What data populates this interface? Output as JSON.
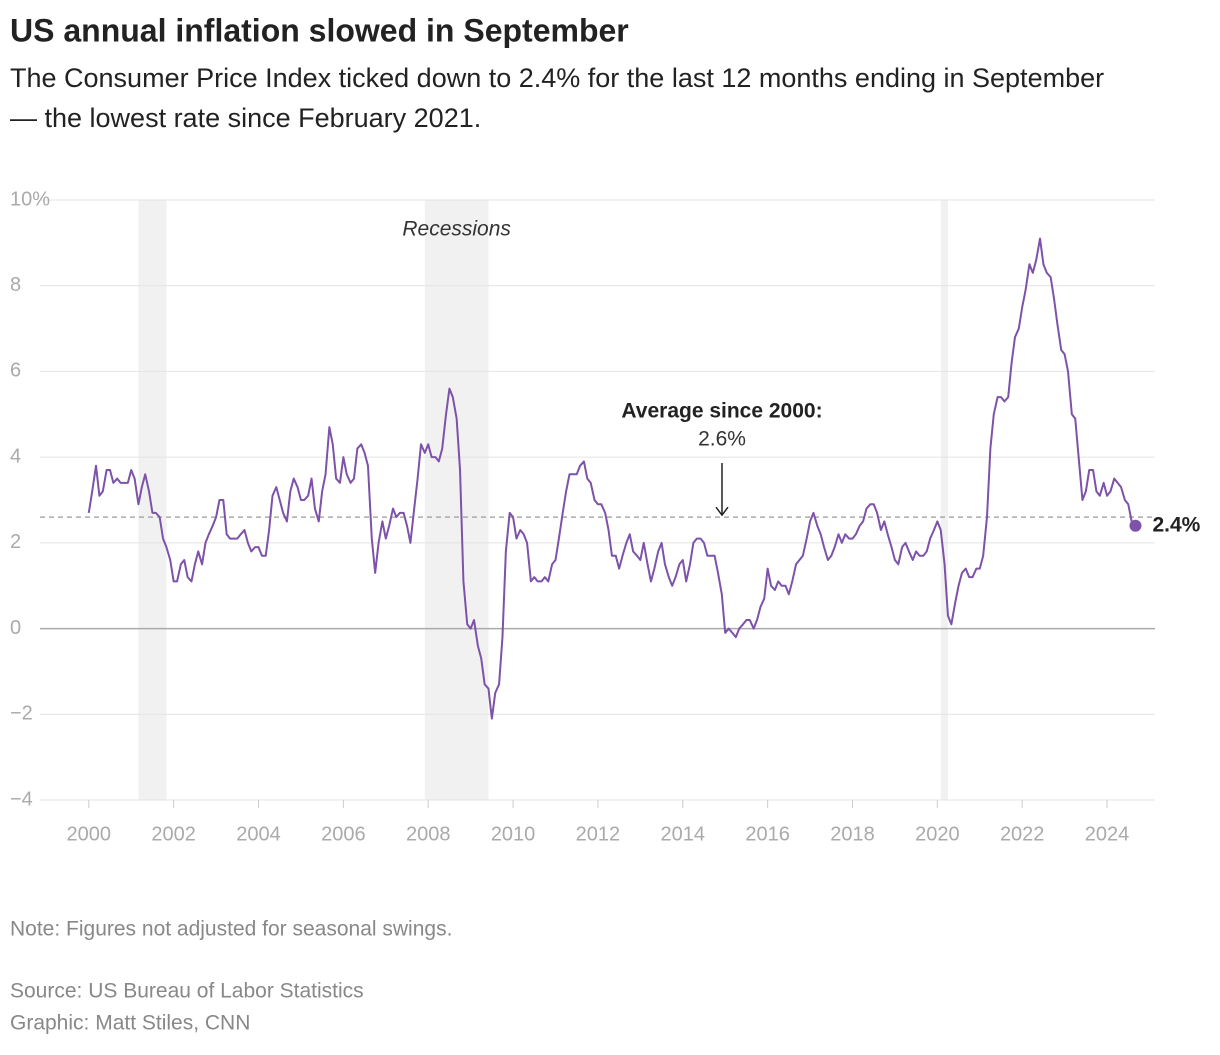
{
  "chart_data": {
    "type": "line",
    "title": "US annual inflation slowed in September",
    "subtitle": "The Consumer Price Index ticked down to 2.4% for the last 12 months ending in September — the lowest rate since February 2021.",
    "note": "Note: Figures not adjusted for seasonal swings.",
    "source": "Source: US Bureau of Labor Statistics",
    "credit": "Graphic: Matt Stiles, CNN",
    "color": "#7d52a9",
    "grid": true,
    "xlim": [
      1998.85,
      2025.13
    ],
    "ylim": [
      -4,
      10
    ],
    "xticks": [
      2000,
      2002,
      2004,
      2006,
      2008,
      2010,
      2012,
      2014,
      2016,
      2018,
      2020,
      2022,
      2024
    ],
    "yticks": [
      {
        "value": -4,
        "label": "−4"
      },
      {
        "value": -2,
        "label": "−2"
      },
      0,
      2,
      4,
      6,
      8,
      {
        "value": 10,
        "label": "10%"
      }
    ],
    "recessions_label": "Recessions",
    "recessions": [
      [
        2001.17,
        2001.83
      ],
      [
        2007.92,
        2009.42
      ],
      [
        2020.08,
        2020.25
      ]
    ],
    "average": {
      "value": 2.6,
      "label": "Average since 2000:",
      "value_label": "2.6%"
    },
    "last_label": "2.4%",
    "x": [
      2000,
      2000.08,
      2000.17,
      2000.25,
      2000.33,
      2000.42,
      2000.5,
      2000.58,
      2000.67,
      2000.75,
      2000.83,
      2000.92,
      2001,
      2001.08,
      2001.17,
      2001.25,
      2001.33,
      2001.42,
      2001.5,
      2001.58,
      2001.67,
      2001.75,
      2001.83,
      2001.92,
      2002,
      2002.08,
      2002.17,
      2002.25,
      2002.33,
      2002.42,
      2002.5,
      2002.58,
      2002.67,
      2002.75,
      2002.83,
      2002.92,
      2003,
      2003.08,
      2003.17,
      2003.25,
      2003.33,
      2003.42,
      2003.5,
      2003.58,
      2003.67,
      2003.75,
      2003.83,
      2003.92,
      2004,
      2004.08,
      2004.17,
      2004.25,
      2004.33,
      2004.42,
      2004.5,
      2004.58,
      2004.67,
      2004.75,
      2004.83,
      2004.92,
      2005,
      2005.08,
      2005.17,
      2005.25,
      2005.33,
      2005.42,
      2005.5,
      2005.58,
      2005.67,
      2005.75,
      2005.83,
      2005.92,
      2006,
      2006.08,
      2006.17,
      2006.25,
      2006.33,
      2006.42,
      2006.5,
      2006.58,
      2006.67,
      2006.75,
      2006.83,
      2006.92,
      2007,
      2007.08,
      2007.17,
      2007.25,
      2007.33,
      2007.42,
      2007.5,
      2007.58,
      2007.67,
      2007.75,
      2007.83,
      2007.92,
      2008,
      2008.08,
      2008.17,
      2008.25,
      2008.33,
      2008.42,
      2008.5,
      2008.58,
      2008.67,
      2008.75,
      2008.83,
      2008.92,
      2009,
      2009.08,
      2009.17,
      2009.25,
      2009.33,
      2009.42,
      2009.5,
      2009.58,
      2009.67,
      2009.75,
      2009.83,
      2009.92,
      2010,
      2010.08,
      2010.17,
      2010.25,
      2010.33,
      2010.42,
      2010.5,
      2010.58,
      2010.67,
      2010.75,
      2010.83,
      2010.92,
      2011,
      2011.08,
      2011.17,
      2011.25,
      2011.33,
      2011.42,
      2011.5,
      2011.58,
      2011.67,
      2011.75,
      2011.83,
      2011.92,
      2012,
      2012.08,
      2012.17,
      2012.25,
      2012.33,
      2012.42,
      2012.5,
      2012.58,
      2012.67,
      2012.75,
      2012.83,
      2012.92,
      2013,
      2013.08,
      2013.17,
      2013.25,
      2013.33,
      2013.42,
      2013.5,
      2013.58,
      2013.67,
      2013.75,
      2013.83,
      2013.92,
      2014,
      2014.08,
      2014.17,
      2014.25,
      2014.33,
      2014.42,
      2014.5,
      2014.58,
      2014.67,
      2014.75,
      2014.83,
      2014.92,
      2015,
      2015.08,
      2015.17,
      2015.25,
      2015.33,
      2015.42,
      2015.5,
      2015.58,
      2015.67,
      2015.75,
      2015.83,
      2015.92,
      2016,
      2016.08,
      2016.17,
      2016.25,
      2016.33,
      2016.42,
      2016.5,
      2016.58,
      2016.67,
      2016.75,
      2016.83,
      2016.92,
      2017,
      2017.08,
      2017.17,
      2017.25,
      2017.33,
      2017.42,
      2017.5,
      2017.58,
      2017.67,
      2017.75,
      2017.83,
      2017.92,
      2018,
      2018.08,
      2018.17,
      2018.25,
      2018.33,
      2018.42,
      2018.5,
      2018.58,
      2018.67,
      2018.75,
      2018.83,
      2018.92,
      2019,
      2019.08,
      2019.17,
      2019.25,
      2019.33,
      2019.42,
      2019.5,
      2019.58,
      2019.67,
      2019.75,
      2019.83,
      2019.92,
      2020,
      2020.08,
      2020.17,
      2020.25,
      2020.33,
      2020.42,
      2020.5,
      2020.58,
      2020.67,
      2020.75,
      2020.83,
      2020.92,
      2021,
      2021.08,
      2021.17,
      2021.25,
      2021.33,
      2021.42,
      2021.5,
      2021.58,
      2021.67,
      2021.75,
      2021.83,
      2021.92,
      2022,
      2022.08,
      2022.17,
      2022.25,
      2022.33,
      2022.42,
      2022.5,
      2022.58,
      2022.67,
      2022.75,
      2022.83,
      2022.92,
      2023,
      2023.08,
      2023.17,
      2023.25,
      2023.33,
      2023.42,
      2023.5,
      2023.58,
      2023.67,
      2023.75,
      2023.83,
      2023.92,
      2024,
      2024.08,
      2024.17,
      2024.25,
      2024.33,
      2024.42,
      2024.5,
      2024.58,
      2024.67
    ],
    "values": [
      2.7,
      3.2,
      3.8,
      3.1,
      3.2,
      3.7,
      3.7,
      3.4,
      3.5,
      3.4,
      3.4,
      3.4,
      3.7,
      3.5,
      2.9,
      3.3,
      3.6,
      3.2,
      2.7,
      2.7,
      2.6,
      2.1,
      1.9,
      1.6,
      1.1,
      1.1,
      1.5,
      1.6,
      1.2,
      1.1,
      1.5,
      1.8,
      1.5,
      2.0,
      2.2,
      2.4,
      2.6,
      3.0,
      3.0,
      2.2,
      2.1,
      2.1,
      2.1,
      2.2,
      2.3,
      2.0,
      1.8,
      1.9,
      1.9,
      1.7,
      1.7,
      2.3,
      3.1,
      3.3,
      3.0,
      2.7,
      2.5,
      3.2,
      3.5,
      3.3,
      3.0,
      3.0,
      3.1,
      3.5,
      2.8,
      2.5,
      3.2,
      3.6,
      4.7,
      4.3,
      3.5,
      3.4,
      4.0,
      3.6,
      3.4,
      3.5,
      4.2,
      4.3,
      4.1,
      3.8,
      2.1,
      1.3,
      2.0,
      2.5,
      2.1,
      2.4,
      2.8,
      2.6,
      2.7,
      2.7,
      2.4,
      2.0,
      2.8,
      3.5,
      4.3,
      4.1,
      4.3,
      4.0,
      4.0,
      3.9,
      4.2,
      5.0,
      5.6,
      5.4,
      4.9,
      3.7,
      1.1,
      0.1,
      0.0,
      0.2,
      -0.4,
      -0.7,
      -1.3,
      -1.4,
      -2.1,
      -1.5,
      -1.3,
      -0.2,
      1.8,
      2.7,
      2.6,
      2.1,
      2.3,
      2.2,
      2.0,
      1.1,
      1.2,
      1.1,
      1.1,
      1.2,
      1.1,
      1.5,
      1.6,
      2.1,
      2.7,
      3.2,
      3.6,
      3.6,
      3.6,
      3.8,
      3.9,
      3.5,
      3.4,
      3.0,
      2.9,
      2.9,
      2.7,
      2.3,
      1.7,
      1.7,
      1.4,
      1.7,
      2.0,
      2.2,
      1.8,
      1.7,
      1.6,
      2.0,
      1.5,
      1.1,
      1.4,
      1.8,
      2.0,
      1.5,
      1.2,
      1.0,
      1.2,
      1.5,
      1.6,
      1.1,
      1.5,
      2.0,
      2.1,
      2.1,
      2.0,
      1.7,
      1.7,
      1.7,
      1.3,
      0.8,
      -0.1,
      0.0,
      -0.1,
      -0.2,
      0.0,
      0.1,
      0.2,
      0.2,
      0.0,
      0.2,
      0.5,
      0.7,
      1.4,
      1.0,
      0.9,
      1.1,
      1.0,
      1.0,
      0.8,
      1.1,
      1.5,
      1.6,
      1.7,
      2.1,
      2.5,
      2.7,
      2.4,
      2.2,
      1.9,
      1.6,
      1.7,
      1.9,
      2.2,
      2.0,
      2.2,
      2.1,
      2.1,
      2.2,
      2.4,
      2.5,
      2.8,
      2.9,
      2.9,
      2.7,
      2.3,
      2.5,
      2.2,
      1.9,
      1.6,
      1.5,
      1.9,
      2.0,
      1.8,
      1.6,
      1.8,
      1.7,
      1.7,
      1.8,
      2.1,
      2.3,
      2.5,
      2.3,
      1.5,
      0.3,
      0.1,
      0.6,
      1.0,
      1.3,
      1.4,
      1.2,
      1.2,
      1.4,
      1.4,
      1.7,
      2.6,
      4.2,
      5.0,
      5.4,
      5.4,
      5.3,
      5.4,
      6.2,
      6.8,
      7.0,
      7.5,
      7.9,
      8.5,
      8.3,
      8.6,
      9.1,
      8.5,
      8.3,
      8.2,
      7.7,
      7.1,
      6.5,
      6.4,
      6.0,
      5.0,
      4.9,
      4.0,
      3.0,
      3.2,
      3.7,
      3.7,
      3.2,
      3.1,
      3.4,
      3.1,
      3.2,
      3.5,
      3.4,
      3.3,
      3.0,
      2.9,
      2.5,
      2.4
    ]
  }
}
